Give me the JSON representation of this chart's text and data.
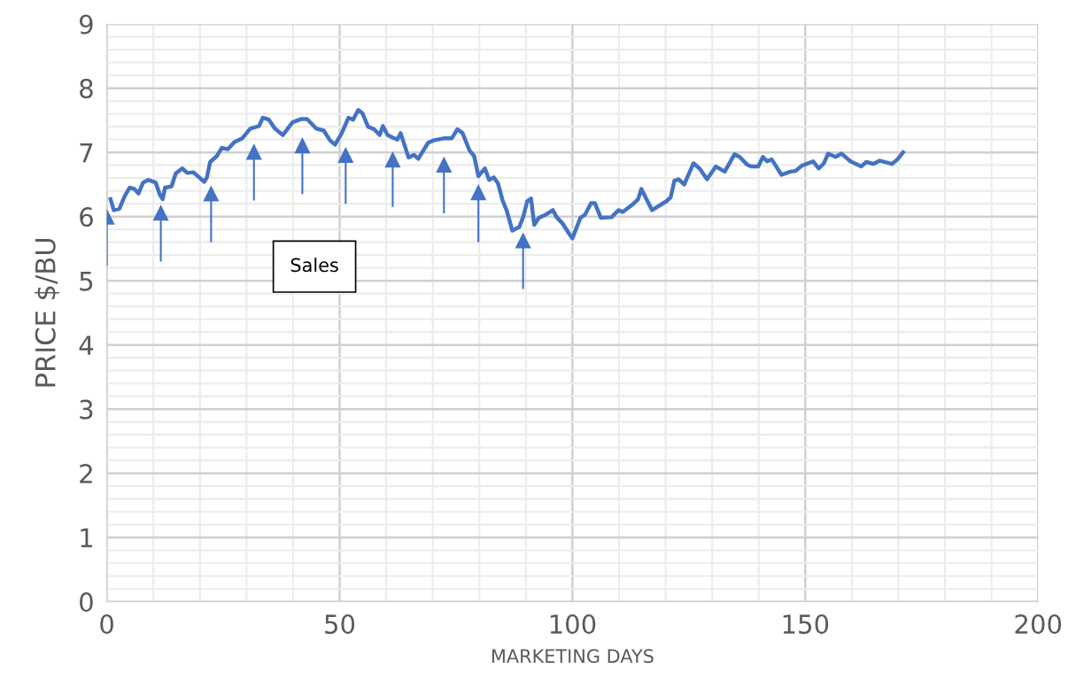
{
  "chart_data": {
    "type": "line",
    "xlabel": "MARKETING DAYS",
    "ylabel": "PRICE $/BU",
    "xlim": [
      0,
      200
    ],
    "xticks": [
      0,
      50,
      100,
      150,
      200
    ],
    "ylim": [
      0,
      9
    ],
    "yticks": [
      0,
      1,
      2,
      3,
      4,
      5,
      6,
      7,
      8,
      9
    ],
    "grid": true,
    "legend": false,
    "annotations": [
      "Sales"
    ],
    "series": [
      {
        "color": "#4472c4",
        "marker": "none",
        "x": [
          0.8,
          1.5,
          2.7,
          3.8,
          4.9,
          5.9,
          6.8,
          7.8,
          8.9,
          10.5,
          11.4,
          12,
          12.5,
          13.9,
          14.8,
          16.2,
          17.3,
          18.6,
          20,
          20.9,
          21.5,
          22.2,
          23.6,
          24.7,
          26,
          27.4,
          29.1,
          30.8,
          32.7,
          33.5,
          34.8,
          36.1,
          37.8,
          39.9,
          41.8,
          43,
          45,
          46.6,
          47.9,
          49,
          50.4,
          51.9,
          52.9,
          54,
          54.9,
          56.1,
          57.4,
          58.6,
          59.3,
          60.3,
          61.4,
          62.4,
          63.1,
          64.8,
          66,
          66.9,
          69,
          70.3,
          72.6,
          74.1,
          75.3,
          76.4,
          77.9,
          78.9,
          79.8,
          81.2,
          82.1,
          83.1,
          84,
          85,
          85.9,
          87.1,
          88.6,
          89.4,
          90.3,
          91.1,
          91.8,
          92.8,
          94.3,
          95.8,
          96.6,
          97.9,
          99.4,
          100,
          101.7,
          102.7,
          104,
          104.8,
          106.1,
          108.4,
          109.9,
          110.8,
          113.1,
          114.1,
          114.8,
          117.1,
          118.4,
          120.2,
          121.1,
          121.9,
          122.8,
          124,
          126,
          127.4,
          128.9,
          130.8,
          132.7,
          134.8,
          135.9,
          137.5,
          138.4,
          139.9,
          140.9,
          141.8,
          142.8,
          144.9,
          146.8,
          147.9,
          149.2,
          151.7,
          152.9,
          154,
          154.9,
          156.5,
          157.8,
          159.7,
          162,
          163.1,
          164.6,
          166,
          168.6,
          169.8,
          171
        ],
        "values": [
          6.27,
          6.1,
          6.12,
          6.31,
          6.45,
          6.43,
          6.36,
          6.53,
          6.57,
          6.53,
          6.34,
          6.27,
          6.45,
          6.47,
          6.67,
          6.75,
          6.68,
          6.69,
          6.6,
          6.54,
          6.61,
          6.85,
          6.94,
          7.07,
          7.05,
          7.16,
          7.22,
          7.37,
          7.41,
          7.54,
          7.51,
          7.37,
          7.27,
          7.47,
          7.52,
          7.52,
          7.37,
          7.34,
          7.19,
          7.12,
          7.29,
          7.54,
          7.51,
          7.66,
          7.61,
          7.4,
          7.36,
          7.27,
          7.41,
          7.27,
          7.23,
          7.2,
          7.3,
          6.92,
          6.96,
          6.9,
          7.15,
          7.19,
          7.22,
          7.22,
          7.36,
          7.3,
          7.03,
          6.94,
          6.63,
          6.75,
          6.57,
          6.61,
          6.52,
          6.25,
          6.09,
          5.78,
          5.84,
          5.99,
          6.24,
          6.28,
          5.87,
          5.98,
          6.03,
          6.1,
          5.99,
          5.89,
          5.72,
          5.66,
          5.98,
          6.03,
          6.21,
          6.21,
          5.98,
          5.99,
          6.1,
          6.07,
          6.2,
          6.27,
          6.43,
          6.1,
          6.16,
          6.24,
          6.3,
          6.56,
          6.58,
          6.5,
          6.83,
          6.74,
          6.58,
          6.78,
          6.7,
          6.97,
          6.93,
          6.81,
          6.78,
          6.78,
          6.93,
          6.86,
          6.89,
          6.65,
          6.7,
          6.71,
          6.79,
          6.86,
          6.75,
          6.83,
          6.98,
          6.93,
          6.98,
          6.86,
          6.78,
          6.85,
          6.82,
          6.87,
          6.82,
          6.89,
          7.0
        ]
      },
      {
        "type": "scatter",
        "color": "#4472c4",
        "marker": "triangle",
        "x": [
          0,
          11.6,
          22.4,
          31.6,
          42,
          51.3,
          61.4,
          72.4,
          79.8,
          89.4
        ],
        "values": [
          6.0,
          6.06,
          6.36,
          7.01,
          7.11,
          6.96,
          6.89,
          6.81,
          6.38,
          5.63
        ],
        "errors": [
          [
            5.23,
            6.0
          ],
          [
            5.3,
            6.06
          ],
          [
            5.6,
            6.36
          ],
          [
            6.25,
            7.01
          ],
          [
            6.35,
            7.11
          ],
          [
            6.2,
            6.96
          ],
          [
            6.15,
            6.89
          ],
          [
            6.05,
            6.81
          ],
          [
            5.6,
            6.38
          ],
          [
            4.87,
            5.63
          ]
        ]
      }
    ]
  }
}
